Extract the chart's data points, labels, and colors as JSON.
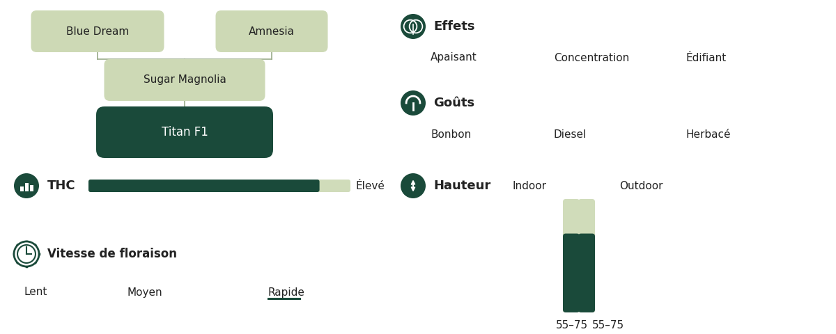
{
  "bg_color": "#ffffff",
  "dark_green": "#1a4a3a",
  "light_green_box": "#cdd9b5",
  "light_green_bar": "#d0dcba",
  "text_color": "#222222",
  "parent1": "Blue Dream",
  "parent2": "Amnesia",
  "middle": "Sugar Magnolia",
  "child": "Titan F1",
  "thc_label": "THC",
  "thc_level": "Élevé",
  "thc_fill": 0.88,
  "flowering_label": "Vitesse de floraison",
  "flowering_speeds": [
    "Lent",
    "Moyen",
    "Rapide"
  ],
  "flowering_active": "Rapide",
  "effets_label": "Effets",
  "effets": [
    "Apaisant",
    "Concentration",
    "Édifiant"
  ],
  "gouts_label": "Goûts",
  "gouts": [
    "Bonbon",
    "Diesel",
    "Herbacé"
  ],
  "hauteur_label": "Hauteur",
  "indoor_label": "Indoor",
  "outdoor_label": "Outdoor",
  "indoor_range": "55–75",
  "outdoor_range": "55–75",
  "indoor_fill": 0.68,
  "outdoor_fill": 0.68
}
